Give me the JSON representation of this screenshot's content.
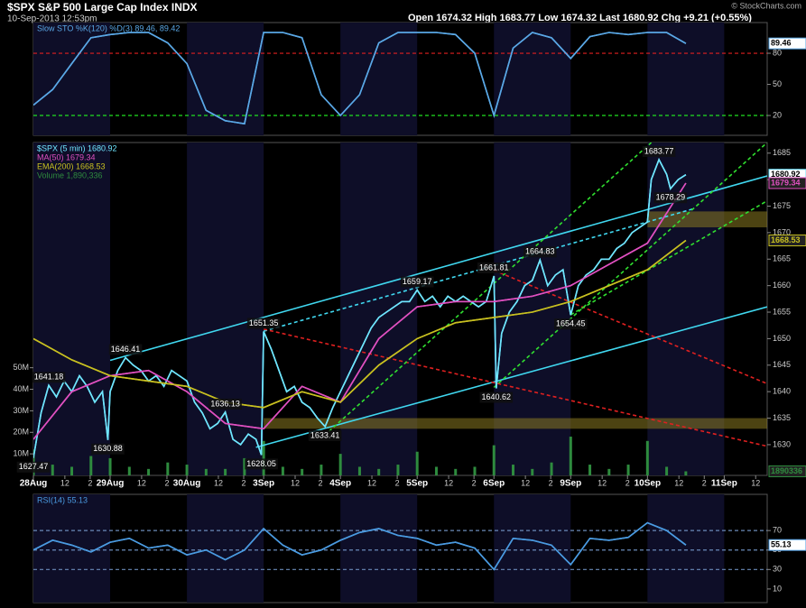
{
  "chart_data": [
    {
      "type": "line",
      "xlim": [
        0,
        9.56
      ],
      "ylim": [
        0.9,
        109.6
      ],
      "yticks": [
        20,
        50,
        80
      ],
      "hlines": [
        {
          "value": 80,
          "color": "#e02020"
        },
        {
          "value": 20,
          "color": "#20e020"
        }
      ],
      "series": [
        {
          "name": "Slow STO %K(120) %D(3) 89.46, 89.42",
          "color": "#5aa8e6",
          "x": [
            0,
            0.25,
            0.5,
            0.75,
            1,
            1.25,
            1.5,
            1.75,
            2,
            2.25,
            2.5,
            2.75,
            3,
            3.25,
            3.5,
            3.75,
            4,
            4.25,
            4.5,
            4.75,
            5,
            5.25,
            5.5,
            5.75,
            6,
            6.25,
            6.5,
            6.75,
            7,
            7.25,
            7.5,
            7.75,
            8,
            8.25,
            8.5
          ],
          "values": [
            30,
            45,
            70,
            95,
            98,
            100,
            100,
            90,
            70,
            25,
            15,
            12,
            100,
            100,
            95,
            40,
            20,
            40,
            90,
            100,
            100,
            100,
            98,
            80,
            20,
            85,
            100,
            95,
            75,
            96,
            100,
            98,
            100,
            100,
            89.46
          ]
        }
      ]
    },
    {
      "type": "line",
      "title": "$SPX S&P 500 Large Cap Index INDX",
      "subtitle": "10-Sep-2013 12:53pm",
      "quote": "Open 1674.32 High 1683.77 Low 1674.32 Last 1680.92 Chg +9.21 (+0.55%)",
      "credit": "© StockCharts.com",
      "xlim": [
        0,
        9.56
      ],
      "xticks": [
        {
          "value": 0,
          "label": "28Aug"
        },
        {
          "value": 0.41,
          "label": "12"
        },
        {
          "value": 0.74,
          "label": "2"
        },
        {
          "value": 1,
          "label": "29Aug"
        },
        {
          "value": 1.41,
          "label": "12"
        },
        {
          "value": 1.74,
          "label": "2"
        },
        {
          "value": 2,
          "label": "30Aug"
        },
        {
          "value": 2.41,
          "label": "12"
        },
        {
          "value": 2.74,
          "label": "2"
        },
        {
          "value": 3,
          "label": "3Sep"
        },
        {
          "value": 3.41,
          "label": "12"
        },
        {
          "value": 3.74,
          "label": "2"
        },
        {
          "value": 4,
          "label": "4Sep"
        },
        {
          "value": 4.41,
          "label": "12"
        },
        {
          "value": 4.74,
          "label": "2"
        },
        {
          "value": 5,
          "label": "5Sep"
        },
        {
          "value": 5.41,
          "label": "12"
        },
        {
          "value": 5.74,
          "label": "2"
        },
        {
          "value": 6,
          "label": "6Sep"
        },
        {
          "value": 6.41,
          "label": "12"
        },
        {
          "value": 6.74,
          "label": "2"
        },
        {
          "value": 7,
          "label": "9Sep"
        },
        {
          "value": 7.41,
          "label": "12"
        },
        {
          "value": 7.74,
          "label": "2"
        },
        {
          "value": 8,
          "label": "10Sep"
        },
        {
          "value": 8.41,
          "label": "12"
        },
        {
          "value": 8.74,
          "label": "2"
        },
        {
          "value": 9,
          "label": "11Sep"
        },
        {
          "value": 9.41,
          "label": "12"
        }
      ],
      "ylim": [
        1624.2,
        1687
      ],
      "yticks": [
        1630,
        1635,
        1640,
        1645,
        1650,
        1655,
        1660,
        1665,
        1670,
        1675,
        1680,
        1685
      ],
      "y2lim": [
        0,
        154600000
      ],
      "y2ticks": [
        {
          "value": 10000000,
          "label": "10M"
        },
        {
          "value": 20000000,
          "label": "20M"
        },
        {
          "value": 30000000,
          "label": "30M"
        },
        {
          "value": 40000000,
          "label": "40M"
        },
        {
          "value": 50000000,
          "label": "50M"
        }
      ],
      "series": [
        {
          "name": "$SPX (5 min) 1680.92",
          "color": "#6fe6ff",
          "x": [
            0,
            0.1,
            0.2,
            0.3,
            0.4,
            0.5,
            0.6,
            0.7,
            0.8,
            0.9,
            0.97,
            1,
            1.1,
            1.2,
            1.3,
            1.4,
            1.5,
            1.6,
            1.7,
            1.8,
            1.9,
            2,
            2.1,
            2.2,
            2.3,
            2.4,
            2.5,
            2.6,
            2.7,
            2.8,
            2.9,
            2.97,
            3,
            3.1,
            3.2,
            3.3,
            3.4,
            3.5,
            3.6,
            3.7,
            3.8,
            3.9,
            4,
            4.1,
            4.2,
            4.3,
            4.4,
            4.5,
            4.6,
            4.7,
            4.8,
            4.9,
            5,
            5.1,
            5.2,
            5.3,
            5.4,
            5.5,
            5.6,
            5.7,
            5.8,
            5.9,
            6,
            6.03,
            6.1,
            6.2,
            6.3,
            6.4,
            6.5,
            6.6,
            6.7,
            6.8,
            6.9,
            7,
            7.1,
            7.2,
            7.3,
            7.4,
            7.5,
            7.6,
            7.7,
            7.8,
            7.9,
            8,
            8.05,
            8.15,
            8.25,
            8.3,
            8.4,
            8.5
          ],
          "values": [
            1627.47,
            1636,
            1641.18,
            1639,
            1642,
            1640,
            1643,
            1641,
            1638,
            1640,
            1630.88,
            1640,
            1644,
            1646.41,
            1645,
            1644,
            1642,
            1643,
            1641,
            1644,
            1643,
            1642,
            1638,
            1636,
            1633,
            1634,
            1636.13,
            1631,
            1630,
            1632,
            1631,
            1628.05,
            1651.35,
            1648,
            1644,
            1640,
            1641,
            1638,
            1637,
            1635,
            1633.41,
            1637,
            1640,
            1643,
            1646,
            1649,
            1652,
            1654,
            1655,
            1656,
            1657,
            1657,
            1659.17,
            1657,
            1658,
            1656,
            1658,
            1657,
            1658,
            1657,
            1656,
            1657,
            1661.81,
            1640.62,
            1651,
            1655,
            1657,
            1660,
            1661,
            1664.83,
            1660,
            1662,
            1663,
            1654.45,
            1660,
            1662,
            1663,
            1665,
            1665,
            1667,
            1668,
            1670,
            1671,
            1672,
            1680,
            1683.77,
            1681,
            1678.29,
            1680,
            1680.92
          ]
        },
        {
          "name": "MA(50) 1679.34",
          "color": "#e050c0",
          "x": [
            0,
            0.5,
            1,
            1.5,
            2,
            2.5,
            3,
            3.5,
            4,
            4.5,
            5,
            5.5,
            6,
            6.5,
            7,
            7.5,
            8,
            8.5
          ],
          "values": [
            1631,
            1640,
            1643,
            1644,
            1640,
            1634,
            1633,
            1641,
            1638,
            1650,
            1656,
            1657,
            1657,
            1658,
            1660,
            1664,
            1668,
            1679.34
          ]
        },
        {
          "name": "EMA(200) 1668.53",
          "color": "#c8c020",
          "x": [
            0,
            0.5,
            1,
            1.5,
            2,
            2.5,
            3,
            3.5,
            4,
            4.5,
            5,
            5.5,
            6,
            6.5,
            7,
            7.5,
            8,
            8.5
          ],
          "values": [
            1650,
            1646,
            1643,
            1642,
            1641,
            1638,
            1637,
            1640,
            1638,
            1645,
            1650,
            1653,
            1654,
            1655,
            1657,
            1660,
            1663,
            1668.53
          ]
        },
        {
          "name": "Volume 1,890,336",
          "color": "#2e8b3e",
          "type": "bar",
          "axis": "y2",
          "x": [
            0,
            0.25,
            0.5,
            0.75,
            1,
            1.25,
            1.5,
            1.75,
            2,
            2.25,
            2.5,
            2.75,
            3,
            3.25,
            3.5,
            3.75,
            4,
            4.25,
            4.5,
            4.75,
            5,
            5.25,
            5.5,
            5.75,
            6,
            6.25,
            6.5,
            6.75,
            7,
            7.25,
            7.5,
            7.75,
            8,
            8.25,
            8.5
          ],
          "values": [
            12000000,
            5000000,
            4000000,
            9000000,
            8000000,
            4000000,
            3000000,
            6000000,
            5000000,
            3000000,
            3000000,
            8000000,
            16000000,
            4000000,
            3000000,
            5000000,
            10000000,
            4000000,
            3000000,
            5000000,
            11000000,
            4000000,
            3000000,
            4000000,
            14000000,
            5000000,
            3000000,
            6000000,
            18000000,
            5000000,
            3000000,
            5000000,
            16000000,
            4000000,
            1890336
          ]
        }
      ],
      "annotations": [
        {
          "x": 0,
          "value": 1627.47
        },
        {
          "x": 0.2,
          "value": 1641.18
        },
        {
          "x": 0.97,
          "value": 1630.88
        },
        {
          "x": 1.2,
          "value": 1646.41
        },
        {
          "x": 2.5,
          "value": 1636.13
        },
        {
          "x": 2.97,
          "value": 1628.05
        },
        {
          "x": 3,
          "value": 1651.35
        },
        {
          "x": 3.8,
          "value": 1633.41
        },
        {
          "x": 5,
          "value": 1659.17
        },
        {
          "x": 6,
          "value": 1661.81
        },
        {
          "x": 6.03,
          "value": 1640.62
        },
        {
          "x": 6.6,
          "value": 1664.83
        },
        {
          "x": 7,
          "value": 1654.45
        },
        {
          "x": 8.15,
          "value": 1683.77
        },
        {
          "x": 8.3,
          "value": 1678.29
        }
      ],
      "lines": [
        {
          "color": "#40d8f0",
          "dashed": false,
          "points": [
            [
              1,
              1645.9
            ],
            [
              9.56,
              1680.7
            ]
          ]
        },
        {
          "color": "#40d8f0",
          "dashed": true,
          "points": [
            [
              3,
              1651.4
            ],
            [
              8.6,
              1674.5
            ]
          ]
        },
        {
          "color": "#40d8f0",
          "dashed": false,
          "points": [
            [
              2.9,
              1629.5
            ],
            [
              9.56,
              1656
            ]
          ]
        },
        {
          "color": "#e02020",
          "dashed": true,
          "points": [
            [
              3,
              1651.8
            ],
            [
              9.56,
              1629.7
            ]
          ]
        },
        {
          "color": "#e02020",
          "dashed": true,
          "points": [
            [
              6,
              1662.9
            ],
            [
              9.56,
              1641.5
            ]
          ]
        },
        {
          "color": "#30e030",
          "dashed": true,
          "points": [
            [
              3.85,
              1632.5
            ],
            [
              8.05,
              1687
            ]
          ]
        },
        {
          "color": "#30e030",
          "dashed": true,
          "points": [
            [
              6,
              1640.8
            ],
            [
              9.56,
              1687
            ]
          ]
        },
        {
          "color": "#30e030",
          "dashed": true,
          "points": [
            [
              7,
              1654.5
            ],
            [
              9.56,
              1676
            ]
          ]
        }
      ],
      "bands": [
        {
          "x0": 3,
          "from": 1633,
          "to": 1635,
          "color": "#8a7a20"
        },
        {
          "x0": 8,
          "from": 1671,
          "to": 1674,
          "color": "#8a7a20"
        }
      ]
    },
    {
      "type": "line",
      "xlim": [
        0,
        9.56
      ],
      "ylim": [
        -4,
        107.2
      ],
      "yticks": [
        10,
        30,
        50,
        70
      ],
      "hlines": [
        {
          "value": 70,
          "color": "#6a8ab8"
        },
        {
          "value": 50,
          "color": "#6a8ab8"
        },
        {
          "value": 30,
          "color": "#6a8ab8"
        }
      ],
      "series": [
        {
          "name": "RSI(14) 55.13",
          "color": "#4a9ae0",
          "x": [
            0,
            0.25,
            0.5,
            0.75,
            1,
            1.25,
            1.5,
            1.75,
            2,
            2.25,
            2.5,
            2.75,
            3,
            3.25,
            3.5,
            3.75,
            4,
            4.25,
            4.5,
            4.75,
            5,
            5.25,
            5.5,
            5.75,
            6,
            6.25,
            6.5,
            6.75,
            7,
            7.25,
            7.5,
            7.75,
            8,
            8.25,
            8.5
          ],
          "values": [
            50,
            60,
            55,
            48,
            58,
            62,
            52,
            55,
            45,
            50,
            40,
            50,
            72,
            55,
            45,
            50,
            60,
            68,
            72,
            65,
            62,
            55,
            58,
            52,
            30,
            62,
            60,
            55,
            35,
            62,
            60,
            63,
            78,
            70,
            55.13
          ]
        }
      ]
    }
  ]
}
